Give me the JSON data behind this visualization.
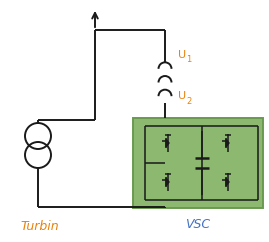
{
  "bg_color": "#ffffff",
  "line_color": "#1a1a1a",
  "orange_color": "#e8820c",
  "vsc_bg": "#8db870",
  "vsc_border": "#6a9a50",
  "fig_width": 2.69,
  "fig_height": 2.42,
  "dpi": 100,
  "turbin_label": "Turbin",
  "vsc_label": "VSC",
  "turbin_color": "#e8820c",
  "vsc_label_color": "#4472c4"
}
